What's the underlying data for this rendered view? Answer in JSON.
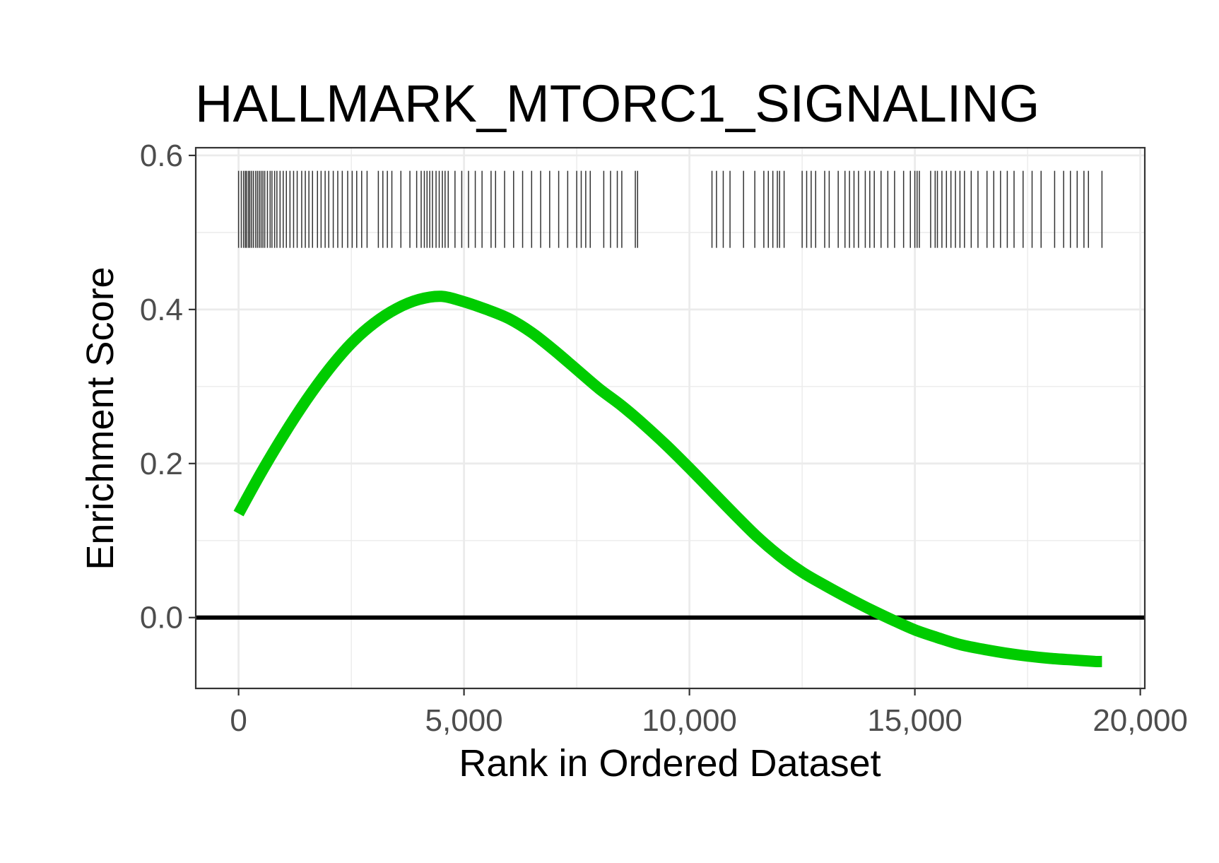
{
  "chart_data": {
    "type": "line",
    "title": "HALLMARK_MTORC1_SIGNALING",
    "xlabel": "Rank in Ordered Dataset",
    "ylabel": "Enrichment Score",
    "xlim": [
      -950,
      20100
    ],
    "ylim": [
      -0.092,
      0.61
    ],
    "x_ticks": [
      0,
      5000,
      10000,
      15000,
      20000
    ],
    "x_tick_labels": [
      "0",
      "5,000",
      "10,000",
      "15,000",
      "20,000"
    ],
    "y_ticks": [
      0.0,
      0.2,
      0.4,
      0.6
    ],
    "y_tick_labels": [
      "0.0",
      "0.2",
      "0.4",
      "0.6"
    ],
    "grid": true,
    "legend": "none",
    "colors": {
      "curve": "#00cc00",
      "zero_line": "#000000",
      "hits": "#333333",
      "grid": "#ebebeb",
      "panel_border": "#333333"
    },
    "zero_line": 0.0,
    "hit_band": [
      0.48,
      0.58
    ],
    "series": [
      {
        "type": "line",
        "x": [
          0,
          500,
          1000,
          1500,
          2000,
          2500,
          3000,
          3500,
          4000,
          4500,
          5000,
          5500,
          6000,
          6500,
          7000,
          7500,
          8000,
          8500,
          9000,
          9500,
          10000,
          10500,
          11000,
          11500,
          12000,
          12500,
          13000,
          13500,
          14000,
          14500,
          15000,
          15500,
          16000,
          16500,
          17000,
          17500,
          18000,
          18500,
          19000,
          19150
        ],
        "y": [
          0.135,
          0.188,
          0.237,
          0.282,
          0.322,
          0.356,
          0.382,
          0.401,
          0.413,
          0.417,
          0.41,
          0.4,
          0.388,
          0.37,
          0.347,
          0.322,
          0.297,
          0.275,
          0.25,
          0.223,
          0.194,
          0.164,
          0.134,
          0.105,
          0.08,
          0.059,
          0.042,
          0.026,
          0.011,
          -0.003,
          -0.016,
          -0.026,
          -0.035,
          -0.041,
          -0.046,
          -0.05,
          -0.053,
          -0.055,
          -0.057,
          -0.057
        ]
      },
      {
        "type": "hits",
        "x": [
          0,
          60,
          110,
          150,
          180,
          220,
          250,
          290,
          330,
          380,
          420,
          460,
          500,
          540,
          580,
          640,
          700,
          740,
          800,
          850,
          920,
          990,
          1060,
          1140,
          1220,
          1300,
          1400,
          1480,
          1560,
          1640,
          1750,
          1830,
          1920,
          2000,
          2100,
          2200,
          2300,
          2420,
          2520,
          2620,
          2730,
          2850,
          3100,
          3200,
          3300,
          3400,
          3600,
          3800,
          3950,
          4050,
          4120,
          4180,
          4240,
          4300,
          4380,
          4450,
          4520,
          4580,
          4650,
          4800,
          4950,
          5100,
          5250,
          5400,
          5600,
          5700,
          5900,
          6100,
          6300,
          6500,
          6700,
          6900,
          7100,
          7300,
          7500,
          7600,
          7700,
          7800,
          8100,
          8250,
          8400,
          8500,
          8800,
          8850,
          10500,
          10600,
          10750,
          10900,
          11200,
          11450,
          11650,
          11750,
          11850,
          11950,
          12000,
          12100,
          12500,
          12600,
          12700,
          12800,
          13000,
          13100,
          13300,
          13450,
          13550,
          13650,
          13750,
          13900,
          14000,
          14100,
          14250,
          14400,
          14550,
          14750,
          14900,
          15000,
          15050,
          15100,
          15350,
          15450,
          15500,
          15600,
          15700,
          15800,
          15900,
          16000,
          16100,
          16250,
          16400,
          16600,
          16750,
          16900,
          17050,
          17200,
          17400,
          17600,
          17800,
          18100,
          18300,
          18450,
          18600,
          18750,
          18850,
          19150
        ]
      }
    ]
  }
}
